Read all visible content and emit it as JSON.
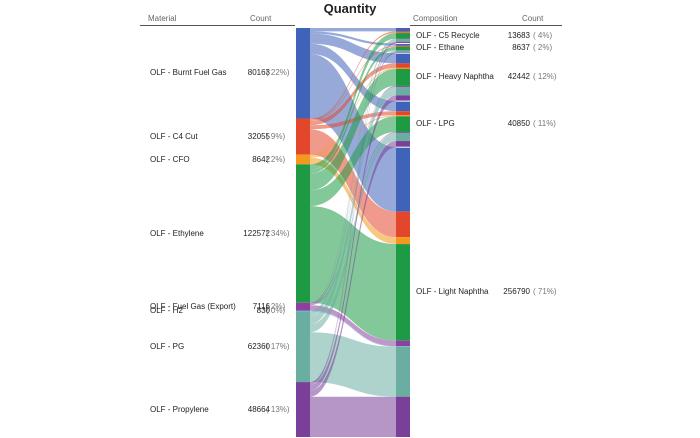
{
  "title": "Quantity",
  "headers": {
    "left_material": "Material",
    "left_count": "Count",
    "right_composition": "Composition",
    "right_count": "Count"
  },
  "chart_data": {
    "type": "sankey",
    "title": "Quantity",
    "sources": [
      {
        "label": "OLF - Burnt Fuel Gas",
        "count": "80163",
        "pct": "( 22%)",
        "value": 80163,
        "color": "#3f63b8"
      },
      {
        "label": "OLF - C4 Cut",
        "count": "32055",
        "pct": "( 9%)",
        "value": 32055,
        "color": "#e3472b"
      },
      {
        "label": "OLF - CFO",
        "count": "8642",
        "pct": "( 2%)",
        "value": 8642,
        "color": "#f39a1e"
      },
      {
        "label": "OLF - Ethylene",
        "count": "122572",
        "pct": "( 34%)",
        "value": 122572,
        "color": "#1e9a45"
      },
      {
        "label": "OLF - Fuel Gas (Export)",
        "count": "7116",
        "pct": "( 2%)",
        "value": 7116,
        "color": "#8e3fa0"
      },
      {
        "label": "OLF - H2",
        "count": "830",
        "pct": "( 0%)",
        "value": 830,
        "color": "#49b6c8"
      },
      {
        "label": "OLF - PG",
        "count": "62360",
        "pct": "( 17%)",
        "value": 62360,
        "color": "#6aaea2"
      },
      {
        "label": "OLF - Propylene",
        "count": "48664",
        "pct": "( 13%)",
        "value": 48664,
        "color": "#7a3f99"
      }
    ],
    "targets": [
      {
        "label": "OLF - C5 Recycle",
        "count": "13683",
        "pct": "( 4%)",
        "value": 13683
      },
      {
        "label": "OLF - Ethane",
        "count": "8637",
        "pct": "( 2%)",
        "value": 8637
      },
      {
        "label": "OLF - Heavy Naphtha",
        "count": "42442",
        "pct": "( 12%)",
        "value": 42442
      },
      {
        "label": "OLF - LPG",
        "count": "40850",
        "pct": "( 11%)",
        "value": 40850
      },
      {
        "label": "OLF - Light Naphtha",
        "count": "256790",
        "pct": "( 71%)",
        "value": 256790
      }
    ],
    "flows": [
      {
        "source": "OLF - Burnt Fuel Gas",
        "target": "OLF - C5 Recycle",
        "value": 3000
      },
      {
        "source": "OLF - Burnt Fuel Gas",
        "target": "OLF - Ethane",
        "value": 2000
      },
      {
        "source": "OLF - Burnt Fuel Gas",
        "target": "OLF - Heavy Naphtha",
        "value": 9000
      },
      {
        "source": "OLF - Burnt Fuel Gas",
        "target": "OLF - LPG",
        "value": 9000
      },
      {
        "source": "OLF - Burnt Fuel Gas",
        "target": "OLF - Light Naphtha",
        "value": 57163
      },
      {
        "source": "OLF - C4 Cut",
        "target": "OLF - C5 Recycle",
        "value": 1200
      },
      {
        "source": "OLF - C4 Cut",
        "target": "OLF - Ethane",
        "value": 800
      },
      {
        "source": "OLF - C4 Cut",
        "target": "OLF - Heavy Naphtha",
        "value": 4000
      },
      {
        "source": "OLF - C4 Cut",
        "target": "OLF - LPG",
        "value": 3500
      },
      {
        "source": "OLF - C4 Cut",
        "target": "OLF - Light Naphtha",
        "value": 22555
      },
      {
        "source": "OLF - CFO",
        "target": "OLF - C5 Recycle",
        "value": 300
      },
      {
        "source": "OLF - CFO",
        "target": "OLF - Ethane",
        "value": 200
      },
      {
        "source": "OLF - CFO",
        "target": "OLF - Heavy Naphtha",
        "value": 1000
      },
      {
        "source": "OLF - CFO",
        "target": "OLF - LPG",
        "value": 1000
      },
      {
        "source": "OLF - CFO",
        "target": "OLF - Light Naphtha",
        "value": 6142
      },
      {
        "source": "OLF - Ethylene",
        "target": "OLF - C5 Recycle",
        "value": 5000
      },
      {
        "source": "OLF - Ethylene",
        "target": "OLF - Ethane",
        "value": 3000
      },
      {
        "source": "OLF - Ethylene",
        "target": "OLF - Heavy Naphtha",
        "value": 15000
      },
      {
        "source": "OLF - Ethylene",
        "target": "OLF - LPG",
        "value": 14000
      },
      {
        "source": "OLF - Ethylene",
        "target": "OLF - Light Naphtha",
        "value": 85572
      },
      {
        "source": "OLF - Fuel Gas (Export)",
        "target": "OLF - C5 Recycle",
        "value": 300
      },
      {
        "source": "OLF - Fuel Gas (Export)",
        "target": "OLF - Ethane",
        "value": 200
      },
      {
        "source": "OLF - Fuel Gas (Export)",
        "target": "OLF - Heavy Naphtha",
        "value": 900
      },
      {
        "source": "OLF - Fuel Gas (Export)",
        "target": "OLF - LPG",
        "value": 800
      },
      {
        "source": "OLF - Fuel Gas (Export)",
        "target": "OLF - Light Naphtha",
        "value": 4916
      },
      {
        "source": "OLF - H2",
        "target": "OLF - C5 Recycle",
        "value": 33
      },
      {
        "source": "OLF - H2",
        "target": "OLF - Ethane",
        "value": 37
      },
      {
        "source": "OLF - H2",
        "target": "OLF - Heavy Naphtha",
        "value": 100
      },
      {
        "source": "OLF - H2",
        "target": "OLF - LPG",
        "value": 100
      },
      {
        "source": "OLF - H2",
        "target": "OLF - Light Naphtha",
        "value": 560
      },
      {
        "source": "OLF - PG",
        "target": "OLF - C5 Recycle",
        "value": 2350
      },
      {
        "source": "OLF - PG",
        "target": "OLF - Ethane",
        "value": 1400
      },
      {
        "source": "OLF - PG",
        "target": "OLF - Heavy Naphtha",
        "value": 7442
      },
      {
        "source": "OLF - PG",
        "target": "OLF - LPG",
        "value": 7000
      },
      {
        "source": "OLF - PG",
        "target": "OLF - Light Naphtha",
        "value": 44168
      },
      {
        "source": "OLF - Propylene",
        "target": "OLF - C5 Recycle",
        "value": 1500
      },
      {
        "source": "OLF - Propylene",
        "target": "OLF - Ethane",
        "value": 1000
      },
      {
        "source": "OLF - Propylene",
        "target": "OLF - Heavy Naphtha",
        "value": 5000
      },
      {
        "source": "OLF - Propylene",
        "target": "OLF - LPG",
        "value": 5450
      },
      {
        "source": "OLF - Propylene",
        "target": "OLF - Light Naphtha",
        "value": 35714
      }
    ]
  }
}
